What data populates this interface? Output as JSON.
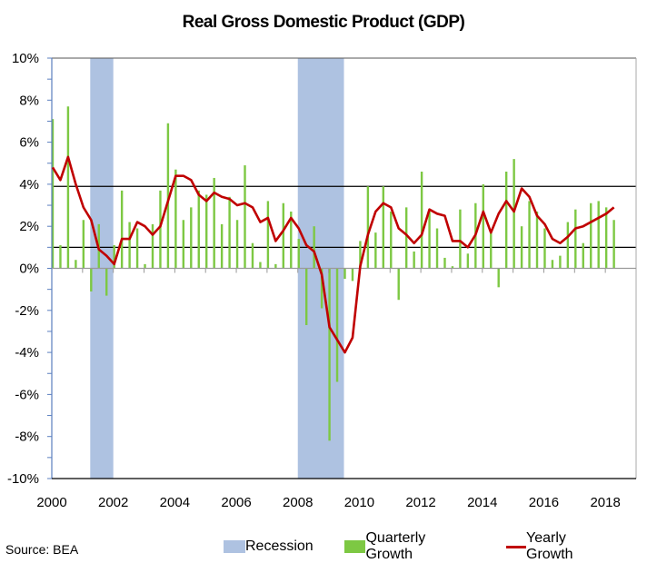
{
  "chart_data": {
    "type": "bar",
    "title": "Real Gross Domestic Product (GDP)",
    "xlabel": "",
    "ylabel": "",
    "ylim": [
      -10,
      10
    ],
    "xlim": [
      2000,
      2019
    ],
    "y_ticks": [
      "10%",
      "8%",
      "6%",
      "4%",
      "2%",
      "0%",
      "-2%",
      "-4%",
      "-6%",
      "-8%",
      "-10%"
    ],
    "y_tick_values": [
      10,
      8,
      6,
      4,
      2,
      0,
      -2,
      -4,
      -6,
      -8,
      -10
    ],
    "x_ticks": [
      "2000",
      "2002",
      "2004",
      "2006",
      "2008",
      "2010",
      "2012",
      "2014",
      "2016",
      "2018"
    ],
    "x_tick_values": [
      2000,
      2002,
      2004,
      2006,
      2008,
      2010,
      2012,
      2014,
      2016,
      2018
    ],
    "reference_lines": [
      3.9,
      1.0
    ],
    "grid": false,
    "legend_position": "bottom",
    "colors": {
      "recession": "#aec2e1",
      "quarterly": "#7dc843",
      "yearly": "#c00000",
      "reference": "#000000",
      "axis": "#5b7fbf"
    },
    "series": [
      {
        "name": "Recession",
        "type": "span",
        "ranges": [
          [
            2001.25,
            2002.0
          ],
          [
            2008.0,
            2009.5
          ]
        ]
      },
      {
        "name": "Quarterly Growth",
        "type": "bar",
        "start": 2000.0,
        "step": 0.25,
        "values": [
          7.1,
          1.1,
          7.7,
          0.4,
          2.3,
          -1.1,
          2.1,
          -1.3,
          1.1,
          3.7,
          2.2,
          1.9,
          0.2,
          2.1,
          3.7,
          6.9,
          4.7,
          2.3,
          2.9,
          3.7,
          3.5,
          4.3,
          2.1,
          3.4,
          2.3,
          4.9,
          1.2,
          0.3,
          3.2,
          0.2,
          3.1,
          2.7,
          1.4,
          -2.7,
          2.0,
          -1.9,
          -8.2,
          -5.4,
          -0.5,
          -0.6,
          1.3,
          3.9,
          1.7,
          3.9,
          2.7,
          -1.5,
          2.9,
          0.8,
          4.6,
          2.7,
          1.9,
          0.5,
          0.1,
          2.8,
          0.7,
          3.1,
          4.0,
          1.7,
          -0.9,
          4.6,
          5.2,
          2.0,
          3.2,
          2.7,
          1.9,
          0.4,
          0.6,
          2.2,
          2.8,
          1.2,
          3.1,
          3.2,
          2.9,
          2.3
        ]
      },
      {
        "name": "Yearly Growth",
        "type": "line",
        "start": 2000.0,
        "step": 0.25,
        "values": [
          4.8,
          4.2,
          5.3,
          4.0,
          2.9,
          2.3,
          0.9,
          0.6,
          0.2,
          1.4,
          1.4,
          2.2,
          2.0,
          1.6,
          2.0,
          3.2,
          4.4,
          4.4,
          4.2,
          3.5,
          3.2,
          3.6,
          3.4,
          3.3,
          3.0,
          3.1,
          2.9,
          2.2,
          2.4,
          1.3,
          1.8,
          2.4,
          1.9,
          1.1,
          0.8,
          -0.3,
          -2.8,
          -3.4,
          -4.0,
          -3.3,
          0.1,
          1.6,
          2.7,
          3.1,
          2.9,
          1.9,
          1.6,
          1.2,
          1.6,
          2.8,
          2.6,
          2.5,
          1.3,
          1.3,
          1.0,
          1.6,
          2.7,
          1.7,
          2.6,
          3.2,
          2.7,
          3.8,
          3.4,
          2.5,
          2.1,
          1.4,
          1.2,
          1.5,
          1.9,
          2.0,
          2.2,
          2.4,
          2.6,
          2.9
        ]
      }
    ]
  },
  "legend": {
    "recession_label": "Recession",
    "quarterly_label": "Quarterly Growth",
    "yearly_label": "Yearly Growth"
  },
  "source": "Source: BEA"
}
